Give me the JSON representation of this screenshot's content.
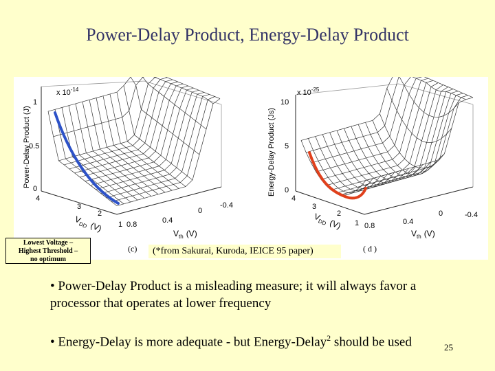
{
  "slide": {
    "title": "Power-Delay Product, Energy-Delay Product",
    "page_number": "25"
  },
  "figure": {
    "left_plot": {
      "exponent_label": "x 10",
      "exponent": "-14",
      "z_axis_label": "Power-Delay Product   (J)",
      "z_ticks": [
        "1",
        "0.5",
        "0"
      ],
      "vdd_ticks": [
        "4",
        "3",
        "2",
        "1"
      ],
      "vdd_label": "V",
      "vdd_sub": "DD",
      "vdd_unit": "(V)",
      "vth_ticks": [
        "0.8",
        "0.4",
        "0",
        "-0.4"
      ],
      "vth_label": "V",
      "vth_sub": "th",
      "vth_unit": "(V)",
      "panel_label": "(c)",
      "highlight_color": "#2d52c8"
    },
    "right_plot": {
      "exponent_label": "x 10",
      "exponent": "-25",
      "z_axis_label": "Energy-Delay Product   (Js)",
      "z_ticks": [
        "10",
        "5",
        "0"
      ],
      "vdd_ticks": [
        "4",
        "3",
        "2",
        "1"
      ],
      "vdd_label": "V",
      "vdd_sub": "DD",
      "vdd_unit": "(V)",
      "vth_ticks": [
        "0.8",
        "0.4",
        "0",
        "-0.4"
      ],
      "vth_label": "V",
      "vth_sub": "th",
      "vth_unit": "(V)",
      "panel_label": "( d )",
      "highlight_color": "#e0401c"
    },
    "callout_lines": [
      "Lowest Voltage –",
      "Highest Threshold –",
      "no optimum"
    ],
    "citation": "(*from Sakurai, Kuroda, IEICE 95 paper)"
  },
  "bullets": {
    "first": "• Power-Delay Product is a misleading measure; it will always favor  a processor that operates at lower frequency",
    "second_pre": "• Energy-Delay is more adequate - but Energy-Delay",
    "second_sup": "2",
    "second_post": " should be used"
  }
}
